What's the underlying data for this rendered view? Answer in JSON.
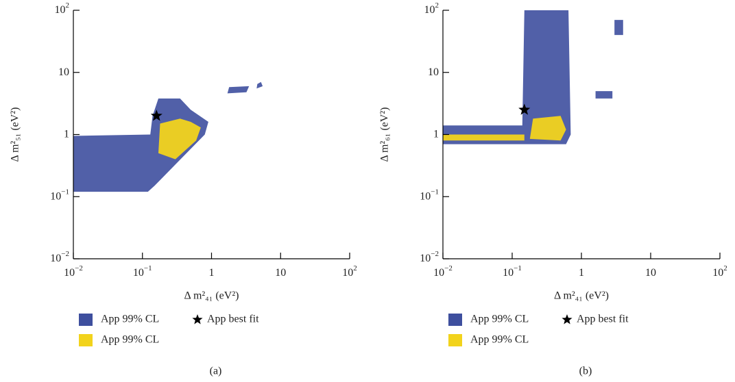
{
  "chart_data": [
    {
      "type": "region",
      "caption": "(a)",
      "x_label": "Δ m²₄₁ (eV²)",
      "y_label": "Δ m²₅₁ (eV²)",
      "log_x": true,
      "log_y": true,
      "xlim": [
        0.01,
        100
      ],
      "ylim": [
        0.01,
        100
      ],
      "xticks": [
        {
          "value": 0.01,
          "label": "10",
          "sup": "−2"
        },
        {
          "value": 0.1,
          "label": "10",
          "sup": "−1"
        },
        1,
        10,
        {
          "value": 100,
          "label": "10",
          "sup": "2"
        }
      ],
      "yticks": [
        {
          "value": 0.01,
          "label": "10",
          "sup": "−2"
        },
        {
          "value": 0.1,
          "label": "10",
          "sup": "−1"
        },
        1,
        10,
        {
          "value": 100,
          "label": "10",
          "sup": "2"
        }
      ],
      "series": [
        {
          "name": "App 99% CL",
          "color": "#3e4f9e",
          "x": [
            0.01,
            0.12,
            0.15,
            0.8,
            0.9,
            0.5,
            0.35,
            0.17,
            0.14,
            0.13,
            0.01,
            null,
            1.7,
            3.2,
            3.5,
            1.8,
            null,
            4.5,
            5.5,
            5.2,
            4.6
          ],
          "y": [
            0.12,
            0.12,
            0.15,
            1.0,
            1.6,
            2.5,
            3.8,
            3.8,
            2.0,
            1.0,
            0.95,
            null,
            4.6,
            4.8,
            6.0,
            5.8,
            null,
            5.5,
            6.0,
            7.0,
            6.5
          ]
        },
        {
          "name": "App 99% CL",
          "color": "#f2d31c",
          "x": [
            0.17,
            0.3,
            0.6,
            0.7,
            0.5,
            0.35,
            0.18
          ],
          "y": [
            0.5,
            0.4,
            0.8,
            1.3,
            1.6,
            1.8,
            1.5
          ]
        },
        {
          "name": "App best fit",
          "color": "#000000",
          "marker": "star",
          "x": [
            0.16
          ],
          "y": [
            2.0
          ]
        }
      ]
    },
    {
      "type": "region",
      "caption": "(b)",
      "x_label": "Δ m²₄₁ (eV²)",
      "y_label": "Δ m²₆₁ (eV²)",
      "log_x": true,
      "log_y": true,
      "xlim": [
        0.01,
        100
      ],
      "ylim": [
        0.01,
        100
      ],
      "xticks": [
        {
          "value": 0.01,
          "label": "10",
          "sup": "−2"
        },
        {
          "value": 0.1,
          "label": "10",
          "sup": "−1"
        },
        1,
        10,
        {
          "value": 100,
          "label": "10",
          "sup": "2"
        }
      ],
      "yticks": [
        {
          "value": 0.01,
          "label": "10",
          "sup": "−2"
        },
        {
          "value": 0.1,
          "label": "10",
          "sup": "−1"
        },
        1,
        10,
        {
          "value": 100,
          "label": "10",
          "sup": "2"
        }
      ],
      "series": [
        {
          "name": "App 99% CL",
          "color": "#3e4f9e",
          "x": [
            0.01,
            0.6,
            0.7,
            0.65,
            0.15,
            0.14,
            0.01,
            null,
            1.6,
            2.8,
            2.8,
            1.6,
            null,
            3.0,
            4.0,
            4.0,
            3.0
          ],
          "y": [
            0.7,
            0.7,
            1.0,
            100,
            100,
            1.4,
            1.4,
            null,
            3.8,
            3.8,
            5.0,
            5.0,
            null,
            40,
            40,
            70,
            70
          ]
        },
        {
          "name": "App 99% CL",
          "color": "#f2d31c",
          "x": [
            0.18,
            0.5,
            0.6,
            0.5,
            0.2,
            null,
            0.01,
            0.15,
            0.15,
            0.01
          ],
          "y": [
            0.85,
            0.8,
            1.2,
            2.0,
            1.8,
            null,
            0.8,
            0.8,
            1.0,
            1.0
          ]
        },
        {
          "name": "App best fit",
          "color": "#000000",
          "marker": "star",
          "x": [
            0.15
          ],
          "y": [
            2.5
          ]
        }
      ]
    }
  ]
}
